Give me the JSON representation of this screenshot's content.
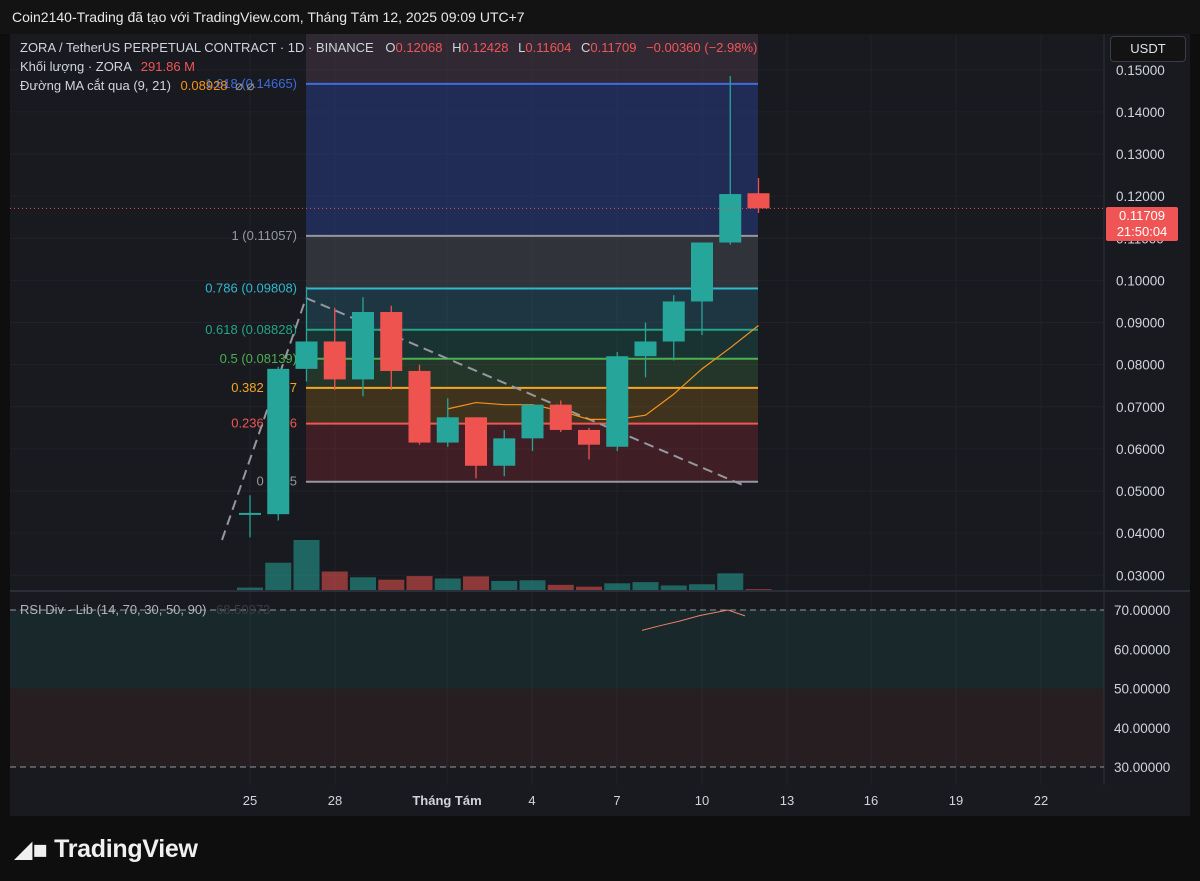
{
  "window": {
    "title": "Coin2140-Trading đã tạo với TradingView.com, Tháng Tám 12, 2025 09:09 UTC+7"
  },
  "legend": {
    "symbol": "ZORA / TetherUS PERPETUAL CONTRACT · 1D · BINANCE",
    "o_label": "O",
    "o": "0.12068",
    "h_label": "H",
    "h": "0.12428",
    "l_label": "L",
    "l": "0.11604",
    "c_label": "C",
    "c": "0.11709",
    "change": "−0.00360 (−2.98%)",
    "volume_label": "Khối lượng · ZORA",
    "volume_value": "291.86 M",
    "ma_label": "Đường MA cắt qua (9, 21)",
    "ma_value": "0.08928",
    "ma_icons": "⌀ ⌀"
  },
  "currency_button": "USDT",
  "last_price": {
    "value": "0.11709",
    "countdown": "21:50:04"
  },
  "rsi": {
    "label": "RSI Div - Lib (14, 70, 30, 50, 90)",
    "value": "68.50973"
  },
  "footer": {
    "brand": "TradingView"
  },
  "chart_data": {
    "type": "candlestick",
    "price_axis": {
      "ylim": [
        0.0265,
        0.1585
      ],
      "ticks": [
        "0.15000",
        "0.14000",
        "0.13000",
        "0.12000",
        "0.11000",
        "0.10000",
        "0.09000",
        "0.08000",
        "0.07000",
        "0.06000",
        "0.05000",
        "0.04000",
        "0.03000"
      ]
    },
    "rsi_axis": {
      "ticks": [
        "70.00000",
        "60.00000",
        "50.00000",
        "40.00000",
        "30.00000"
      ]
    },
    "time_axis": {
      "labels": [
        "25",
        "28",
        "Tháng Tám",
        "4",
        "7",
        "10",
        "13",
        "16",
        "19",
        "22"
      ]
    },
    "candles": [
      {
        "date": "2025-07-24",
        "o": 0.0445,
        "h": 0.049,
        "l": 0.039,
        "c": 0.0448
      },
      {
        "date": "2025-07-25",
        "o": 0.0445,
        "h": 0.0795,
        "l": 0.043,
        "c": 0.079
      },
      {
        "date": "2025-07-26",
        "o": 0.079,
        "h": 0.0985,
        "l": 0.076,
        "c": 0.0855
      },
      {
        "date": "2025-07-27",
        "o": 0.0855,
        "h": 0.0935,
        "l": 0.074,
        "c": 0.0765
      },
      {
        "date": "2025-07-28",
        "o": 0.0765,
        "h": 0.096,
        "l": 0.0725,
        "c": 0.0925
      },
      {
        "date": "2025-07-29",
        "o": 0.0925,
        "h": 0.094,
        "l": 0.074,
        "c": 0.0785
      },
      {
        "date": "2025-07-30",
        "o": 0.0785,
        "h": 0.08,
        "l": 0.061,
        "c": 0.0615
      },
      {
        "date": "2025-07-31",
        "o": 0.0615,
        "h": 0.072,
        "l": 0.0605,
        "c": 0.0675
      },
      {
        "date": "2025-08-01",
        "o": 0.0675,
        "h": 0.0675,
        "l": 0.053,
        "c": 0.056
      },
      {
        "date": "2025-08-02",
        "o": 0.056,
        "h": 0.0645,
        "l": 0.0535,
        "c": 0.0625
      },
      {
        "date": "2025-08-03",
        "o": 0.0625,
        "h": 0.07,
        "l": 0.0595,
        "c": 0.0705
      },
      {
        "date": "2025-08-04",
        "o": 0.0705,
        "h": 0.0715,
        "l": 0.064,
        "c": 0.0645
      },
      {
        "date": "2025-08-05",
        "o": 0.0645,
        "h": 0.065,
        "l": 0.0575,
        "c": 0.061
      },
      {
        "date": "2025-08-06",
        "o": 0.0605,
        "h": 0.083,
        "l": 0.0595,
        "c": 0.082
      },
      {
        "date": "2025-08-07",
        "o": 0.082,
        "h": 0.09,
        "l": 0.077,
        "c": 0.0855
      },
      {
        "date": "2025-08-08",
        "o": 0.0855,
        "h": 0.0965,
        "l": 0.081,
        "c": 0.095
      },
      {
        "date": "2025-08-09",
        "o": 0.095,
        "h": 0.109,
        "l": 0.087,
        "c": 0.109
      },
      {
        "date": "2025-08-10",
        "o": 0.109,
        "h": 0.1485,
        "l": 0.1085,
        "c": 0.1205
      },
      {
        "date": "2025-08-11",
        "o": 0.1207,
        "h": 0.1243,
        "l": 0.116,
        "c": 0.1171
      }
    ],
    "volume": [
      0.8,
      9.0,
      16.5,
      6.1,
      4.2,
      3.4,
      4.6,
      3.8,
      4.5,
      3.0,
      3.2,
      1.7,
      1.1,
      2.2,
      2.6,
      1.5,
      1.9,
      5.5,
      0.3
    ],
    "ma_line": [
      {
        "date": "2025-07-31",
        "v": 0.0695
      },
      {
        "date": "2025-08-01",
        "v": 0.071
      },
      {
        "date": "2025-08-02",
        "v": 0.0705
      },
      {
        "date": "2025-08-03",
        "v": 0.0705
      },
      {
        "date": "2025-08-04",
        "v": 0.069
      },
      {
        "date": "2025-08-05",
        "v": 0.067
      },
      {
        "date": "2025-08-06",
        "v": 0.067
      },
      {
        "date": "2025-08-07",
        "v": 0.068
      },
      {
        "date": "2025-08-08",
        "v": 0.073
      },
      {
        "date": "2025-08-09",
        "v": 0.079
      },
      {
        "date": "2025-08-10",
        "v": 0.084
      },
      {
        "date": "2025-08-11",
        "v": 0.0893
      }
    ],
    "fib_levels": [
      {
        "label": "1.618 (0.14665)",
        "price": 0.14665,
        "color": "#3d6be0"
      },
      {
        "label": "1 (0.11057)",
        "price": 0.11057,
        "color": "#9598a1"
      },
      {
        "label": "0.786 (0.09808)",
        "price": 0.09808,
        "color": "#2fb8cf"
      },
      {
        "label": "0.618 (0.08828)",
        "price": 0.08828,
        "color": "#22a586"
      },
      {
        "label": "0.5 (0.08139)",
        "price": 0.08139,
        "color": "#4caf50"
      },
      {
        "label": "0.382 (0.07450)",
        "price": 0.0745,
        "color": "#f5a623"
      },
      {
        "label": "0.236 (0.06600)",
        "price": 0.066,
        "color": "#f05555"
      },
      {
        "label": "0 (0.05220)",
        "price": 0.0522,
        "color": "#9598a1"
      }
    ],
    "fib_displayed_labels": [
      "1.618 (0.14665)",
      "1 (0.11057)",
      "0.786 (0.09808)",
      "0.618 (0.08828)",
      "0.5 (0.08139)",
      "0.382 (0.07",
      "0.236 (0.06",
      "0 (0.05"
    ],
    "rsi_line": [
      {
        "v": 64.8
      },
      {
        "v": 66.0
      },
      {
        "v": 67.2
      },
      {
        "v": 68.6
      },
      {
        "v": 70.0
      },
      {
        "v": 68.5
      }
    ],
    "colors": {
      "up": "#26a69a",
      "down": "#ef5350",
      "fib_top": "#3d6be0",
      "ma": "#f7931a"
    }
  }
}
